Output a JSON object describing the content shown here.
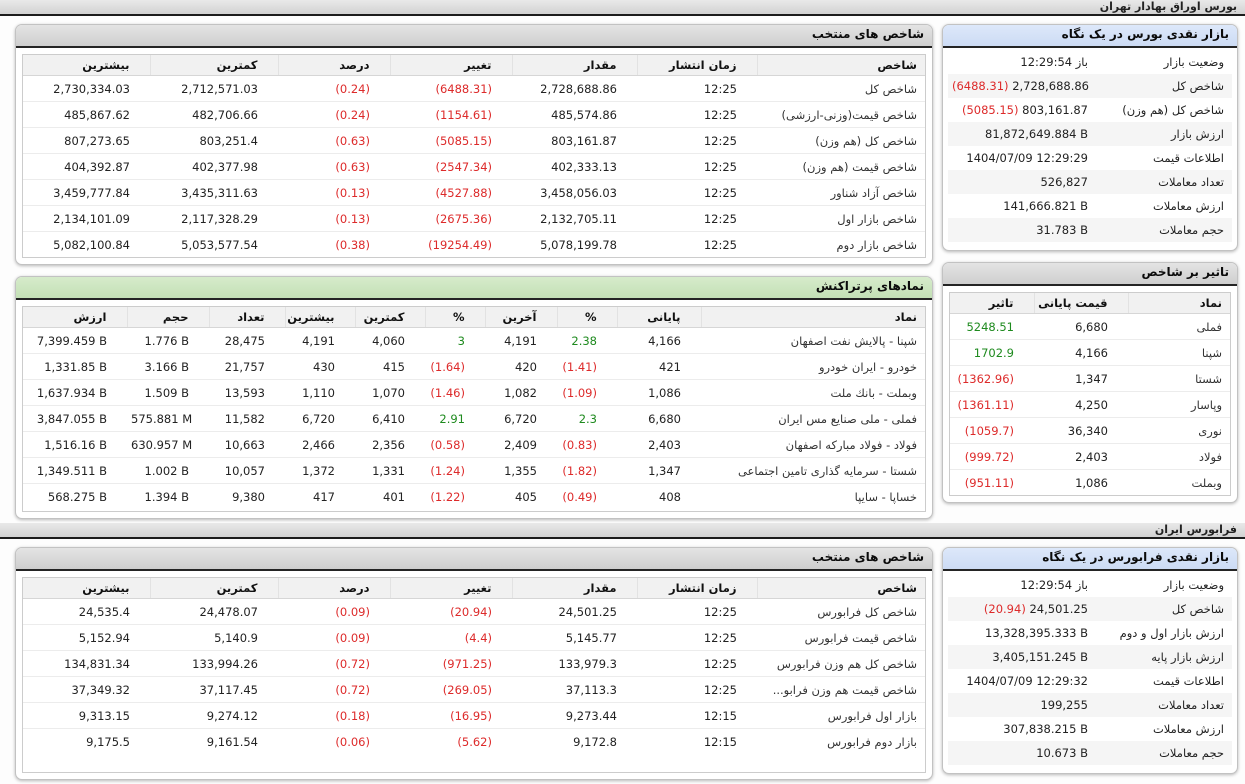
{
  "colors": {
    "negative": "#dd2a2a",
    "positive": "#1e8a1e",
    "gray_header": "#d5d5d5",
    "blue_header": "#d2e0f6",
    "green_header": "#c9e4bd"
  },
  "bourse": {
    "section_title": "بورس اوراق بهادار تهران",
    "selected_indices": {
      "title": "شاخص های منتخب",
      "headers": [
        "شاخص",
        "زمان انتشار",
        "مقدار",
        "تغییر",
        "درصد",
        "کمترین",
        "بیشترین"
      ],
      "rows": [
        [
          "شاخص کل",
          "12:25",
          "2,728,688.86",
          "(6488.31)",
          "(0.24)",
          "2,712,571.03",
          "2,730,334.03"
        ],
        [
          "شاخص قیمت(وزنی-ارزشی)",
          "12:25",
          "485,574.86",
          "(1154.61)",
          "(0.24)",
          "482,706.66",
          "485,867.62"
        ],
        [
          "شاخص کل (هم وزن)",
          "12:25",
          "803,161.87",
          "(5085.15)",
          "(0.63)",
          "803,251.4",
          "807,273.65"
        ],
        [
          "شاخص قیمت (هم وزن)",
          "12:25",
          "402,333.13",
          "(2547.34)",
          "(0.63)",
          "402,377.98",
          "404,392.87"
        ],
        [
          "شاخص آزاد شناور",
          "12:25",
          "3,458,056.03",
          "(4527.88)",
          "(0.13)",
          "3,435,311.63",
          "3,459,777.84"
        ],
        [
          "شاخص بازار اول",
          "12:25",
          "2,132,705.11",
          "(2675.36)",
          "(0.13)",
          "2,117,328.29",
          "2,134,101.09"
        ],
        [
          "شاخص بازار دوم",
          "12:25",
          "5,078,199.78",
          "(19254.49)",
          "(0.38)",
          "5,053,577.54",
          "5,082,100.84"
        ]
      ]
    },
    "top_traded": {
      "title": "نمادهای پرتراکنش",
      "headers": [
        "نماد",
        "پایانی",
        "%",
        "آخرین",
        "%",
        "کمترین",
        "بیشترین",
        "تعداد",
        "حجم",
        "ارزش"
      ],
      "rows": [
        [
          "شپنا - پالایش نفت اصفهان",
          "4,166",
          "2.38",
          "4,191",
          "3",
          "4,060",
          "4,191",
          "28,475",
          "1.776 B",
          "7,399.459 B"
        ],
        [
          "خودرو - ایران خودرو",
          "421",
          "(1.41)",
          "420",
          "(1.64)",
          "415",
          "430",
          "21,757",
          "3.166 B",
          "1,331.85 B"
        ],
        [
          "وبملت - بانك ملت",
          "1,086",
          "(1.09)",
          "1,082",
          "(1.46)",
          "1,070",
          "1,110",
          "13,593",
          "1.509 B",
          "1,637.934 B"
        ],
        [
          "فملی - ملی صنایع مس ایران",
          "6,680",
          "2.3",
          "6,720",
          "2.91",
          "6,410",
          "6,720",
          "11,582",
          "575.881 M",
          "3,847.055 B"
        ],
        [
          "فولاد - فولاد مباركه اصفهان",
          "2,403",
          "(0.83)",
          "2,409",
          "(0.58)",
          "2,356",
          "2,466",
          "10,663",
          "630.957 M",
          "1,516.16 B"
        ],
        [
          "شستا - سرمایه گذاری تامین اجتماعی",
          "1,347",
          "(1.82)",
          "1,355",
          "(1.24)",
          "1,331",
          "1,372",
          "10,057",
          "1.002 B",
          "1,349.511 B"
        ],
        [
          "خساپا - سایپا",
          "408",
          "(0.49)",
          "405",
          "(1.22)",
          "401",
          "417",
          "9,380",
          "1.394 B",
          "568.275 B"
        ]
      ]
    },
    "market_overview": {
      "title": "بازار نقدی بورس در یک نگاه",
      "rows": [
        {
          "label": "وضعیت بازار",
          "value": "باز 12:29:54"
        },
        {
          "label": "شاخص کل",
          "value": "2,728,688.86",
          "change": "(6488.31)"
        },
        {
          "label": "شاخص کل (هم وزن)",
          "value": "803,161.87",
          "change": "(5085.15)"
        },
        {
          "label": "ارزش بازار",
          "value": "81,872,649.884 B"
        },
        {
          "label": "اطلاعات قیمت",
          "value": "1404/07/09 12:29:29"
        },
        {
          "label": "تعداد معاملات",
          "value": "526,827"
        },
        {
          "label": "ارزش معاملات",
          "value": "141,666.821 B"
        },
        {
          "label": "حجم معاملات",
          "value": "31.783 B"
        }
      ]
    },
    "index_impact": {
      "title": "تاثیر بر شاخص",
      "headers": [
        "نماد",
        "قیمت پایانی",
        "تاثیر"
      ],
      "rows": [
        [
          "فملی",
          "6,680",
          "5248.51"
        ],
        [
          "شپنا",
          "4,166",
          "1702.9"
        ],
        [
          "شستا",
          "1,347",
          "(1362.96)"
        ],
        [
          "وپاسار",
          "4,250",
          "(1361.11)"
        ],
        [
          "نوری",
          "36,340",
          "(1059.7)"
        ],
        [
          "فولاد",
          "2,403",
          "(999.72)"
        ],
        [
          "وبملت",
          "1,086",
          "(951.11)"
        ]
      ]
    }
  },
  "farabourse": {
    "section_title": "فرابورس ایران",
    "selected_indices": {
      "title": "شاخص های منتخب",
      "headers": [
        "شاخص",
        "زمان انتشار",
        "مقدار",
        "تغییر",
        "درصد",
        "کمترین",
        "بیشترین"
      ],
      "rows": [
        [
          "شاخص کل فرابورس",
          "12:25",
          "24,501.25",
          "(20.94)",
          "(0.09)",
          "24,478.07",
          "24,535.4"
        ],
        [
          "شاخص قیمت فرابورس",
          "12:25",
          "5,145.77",
          "(4.4)",
          "(0.09)",
          "5,140.9",
          "5,152.94"
        ],
        [
          "شاخص کل هم وزن فرابورس",
          "12:25",
          "133,979.3",
          "(971.25)",
          "(0.72)",
          "133,994.26",
          "134,831.34"
        ],
        [
          "شاخص قیمت هم وزن فرابو...",
          "12:25",
          "37,113.3",
          "(269.05)",
          "(0.72)",
          "37,117.45",
          "37,349.32"
        ],
        [
          "بازار اول فرابورس",
          "12:15",
          "9,273.44",
          "(16.95)",
          "(0.18)",
          "9,274.12",
          "9,313.15"
        ],
        [
          "بازار دوم فرابورس",
          "12:15",
          "9,172.8",
          "(5.62)",
          "(0.06)",
          "9,161.54",
          "9,175.5"
        ]
      ]
    },
    "market_overview": {
      "title": "بازار نقدی فرابورس در یک نگاه",
      "rows": [
        {
          "label": "وضعیت بازار",
          "value": "باز 12:29:54"
        },
        {
          "label": "شاخص کل",
          "value": "24,501.25",
          "change": "(20.94)"
        },
        {
          "label": "ارزش بازار اول و دوم",
          "value": "13,328,395.333 B"
        },
        {
          "label": "ارزش بازار پایه",
          "value": "3,405,151.245 B"
        },
        {
          "label": "اطلاعات قیمت",
          "value": "1404/07/09 12:29:32"
        },
        {
          "label": "تعداد معاملات",
          "value": "199,255"
        },
        {
          "label": "ارزش معاملات",
          "value": "307,838.215 B"
        },
        {
          "label": "حجم معاملات",
          "value": "10.673 B"
        }
      ]
    }
  }
}
